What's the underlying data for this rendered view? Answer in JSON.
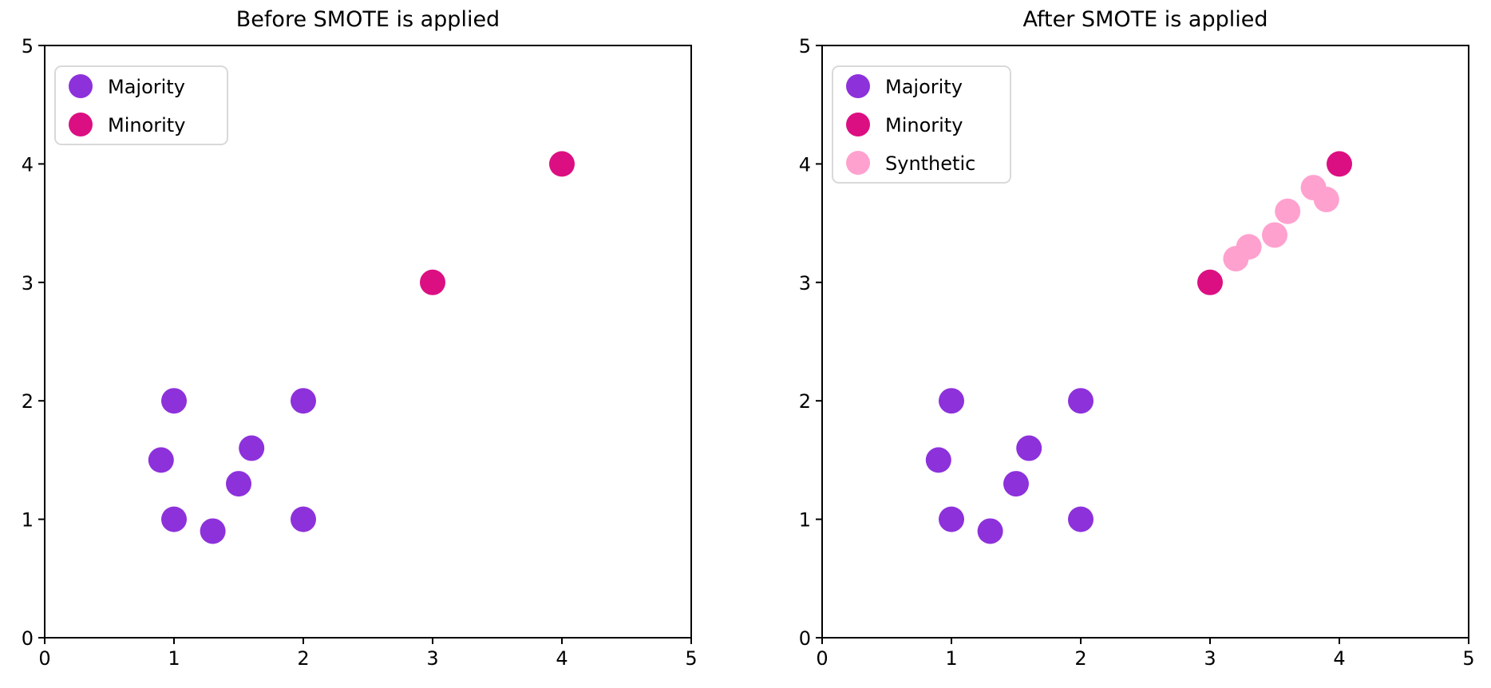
{
  "figure": {
    "background": "#ffffff",
    "text_color": "#000000",
    "spine_color": "#000000",
    "legend_border_color": "#d9d9d9",
    "legend_background": "#ffffff"
  },
  "chart_data": [
    {
      "type": "scatter",
      "title": "Before SMOTE is applied",
      "xlabel": "",
      "ylabel": "",
      "xlim": [
        0,
        5
      ],
      "ylim": [
        0,
        5
      ],
      "xticks": [
        0,
        1,
        2,
        3,
        4,
        5
      ],
      "yticks": [
        0,
        1,
        2,
        3,
        4,
        5
      ],
      "grid": false,
      "legend_position": "upper-left",
      "series": [
        {
          "name": "Majority",
          "color": "#8D31DB",
          "points": [
            [
              1,
              2
            ],
            [
              2,
              2
            ],
            [
              0.9,
              1.5
            ],
            [
              1.6,
              1.6
            ],
            [
              1.5,
              1.3
            ],
            [
              1,
              1
            ],
            [
              1.3,
              0.9
            ],
            [
              2,
              1
            ]
          ]
        },
        {
          "name": "Minority",
          "color": "#DB0F82",
          "points": [
            [
              3,
              3
            ],
            [
              4,
              4
            ]
          ]
        }
      ]
    },
    {
      "type": "scatter",
      "title": "After SMOTE is applied",
      "xlabel": "",
      "ylabel": "",
      "xlim": [
        0,
        5
      ],
      "ylim": [
        0,
        5
      ],
      "xticks": [
        0,
        1,
        2,
        3,
        4,
        5
      ],
      "yticks": [
        0,
        1,
        2,
        3,
        4,
        5
      ],
      "grid": false,
      "legend_position": "upper-left",
      "series": [
        {
          "name": "Majority",
          "color": "#8D31DB",
          "points": [
            [
              1,
              2
            ],
            [
              2,
              2
            ],
            [
              0.9,
              1.5
            ],
            [
              1.6,
              1.6
            ],
            [
              1.5,
              1.3
            ],
            [
              1,
              1
            ],
            [
              1.3,
              0.9
            ],
            [
              2,
              1
            ]
          ]
        },
        {
          "name": "Minority",
          "color": "#DB0F82",
          "points": [
            [
              3,
              3
            ],
            [
              4,
              4
            ]
          ]
        },
        {
          "name": "Synthetic",
          "color": "#FFA1CF",
          "points": [
            [
              3.2,
              3.2
            ],
            [
              3.3,
              3.3
            ],
            [
              3.5,
              3.4
            ],
            [
              3.6,
              3.6
            ],
            [
              3.8,
              3.8
            ],
            [
              3.9,
              3.7
            ]
          ]
        }
      ]
    }
  ]
}
